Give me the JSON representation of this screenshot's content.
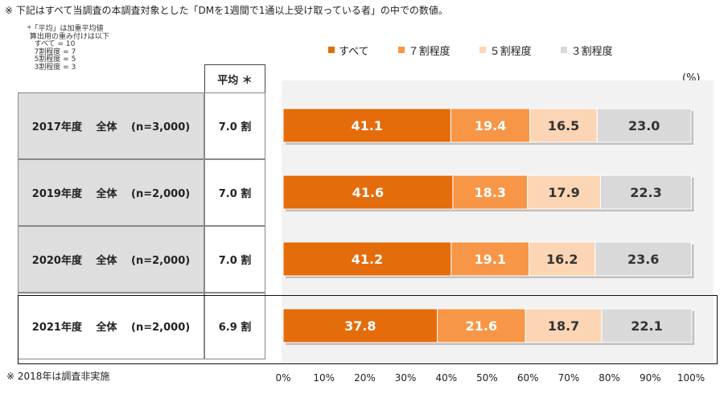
{
  "notes": {
    "top": "※ 下記はすべて当調査の本調査対象とした「DMを1週間で1通以上受け取っている者」の中での数値。",
    "weights": "*「平均」は加重平均値\n 算出用の重み付けは以下\n   すべて = 10\n   7割程度 = 7\n   5割程度 = 5\n   3割程度 = 3",
    "bottom": "※ 2018年は調査非実施"
  },
  "table": {
    "avg_header": "平均 ＊"
  },
  "chart_data": {
    "type": "bar",
    "orientation": "horizontal",
    "stacked": true,
    "unit_label": "(%)",
    "categories": [
      "2017年度　 全体　 (n=3,000)",
      "2019年度　 全体　 (n=2,000)",
      "2020年度　 全体　 (n=2,000)",
      "2021年度　 全体　 (n=2,000)"
    ],
    "averages": [
      "7.0 割",
      "7.0 割",
      "7.0 割",
      "6.9 割"
    ],
    "series": [
      {
        "name": "すべて",
        "color": "#e46c0a",
        "label_color": "#ffffff",
        "values": [
          41.1,
          41.6,
          41.2,
          37.8
        ]
      },
      {
        "name": "７割程度",
        "color": "#f79646",
        "label_color": "#ffffff",
        "values": [
          19.4,
          18.3,
          19.1,
          21.6
        ]
      },
      {
        "name": "５割程度",
        "color": "#fcd5b5",
        "label_color": "#333333",
        "values": [
          16.5,
          17.9,
          16.2,
          18.7
        ]
      },
      {
        "name": "３割程度",
        "color": "#d9d9d9",
        "label_color": "#333333",
        "values": [
          23.0,
          22.3,
          23.6,
          22.1
        ]
      }
    ],
    "xlim": [
      0,
      100
    ],
    "xticks": [
      "0%",
      "10%",
      "20%",
      "30%",
      "40%",
      "50%",
      "60%",
      "70%",
      "80%",
      "90%",
      "100%"
    ],
    "highlighted_category": "2021年度　 全体　 (n=2,000)",
    "legend_position": "top"
  }
}
